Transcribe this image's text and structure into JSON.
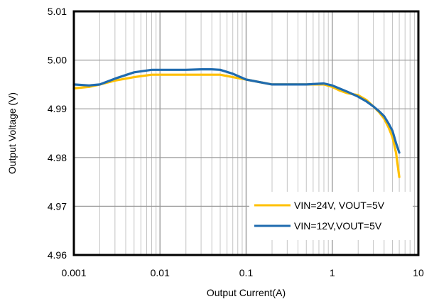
{
  "chart_data": {
    "type": "line",
    "title": "",
    "xlabel": "Output Current(A)",
    "ylabel": "Output Voltage (V)",
    "xscale": "log",
    "xlim": [
      0.001,
      10
    ],
    "ylim": [
      4.96,
      5.01
    ],
    "x_ticks": [
      "0.001",
      "0.01",
      "0.1",
      "1",
      "10"
    ],
    "y_ticks": [
      "4.96",
      "4.97",
      "4.98",
      "4.99",
      "5.00",
      "5.01"
    ],
    "grid": true,
    "legend_position": "bottom-right",
    "series": [
      {
        "name": "VIN=24V, VOUT=5V",
        "color": "#FFC000",
        "x": [
          0.001,
          0.0015,
          0.002,
          0.003,
          0.005,
          0.008,
          0.01,
          0.02,
          0.03,
          0.05,
          0.07,
          0.1,
          0.2,
          0.5,
          0.8,
          1.0,
          1.2,
          1.5,
          2.0,
          2.5,
          3.0,
          3.5,
          4.0,
          4.5,
          5.0,
          5.5,
          6.0
        ],
        "y": [
          4.9942,
          4.9945,
          4.995,
          4.9958,
          4.9965,
          4.997,
          4.997,
          4.997,
          4.997,
          4.997,
          4.9965,
          4.996,
          4.995,
          4.995,
          4.995,
          4.9945,
          4.9938,
          4.9932,
          4.9928,
          4.9918,
          4.9905,
          4.9893,
          4.988,
          4.9862,
          4.9842,
          4.981,
          4.976
        ]
      },
      {
        "name": "VIN=12V,VOUT=5V",
        "color": "#1F6BAF",
        "x": [
          0.001,
          0.0015,
          0.002,
          0.003,
          0.005,
          0.008,
          0.01,
          0.02,
          0.03,
          0.04,
          0.05,
          0.07,
          0.1,
          0.2,
          0.5,
          0.8,
          1.0,
          1.2,
          1.5,
          2.0,
          2.5,
          3.0,
          3.5,
          4.0,
          4.5,
          5.0,
          5.5,
          6.0
        ],
        "y": [
          4.995,
          4.9948,
          4.995,
          4.9962,
          4.9975,
          4.998,
          4.998,
          4.998,
          4.9981,
          4.9981,
          4.998,
          4.9972,
          4.996,
          4.995,
          4.995,
          4.9952,
          4.9948,
          4.9942,
          4.9935,
          4.9925,
          4.9915,
          4.9905,
          4.9895,
          4.9885,
          4.987,
          4.9855,
          4.983,
          4.981
        ]
      }
    ]
  }
}
